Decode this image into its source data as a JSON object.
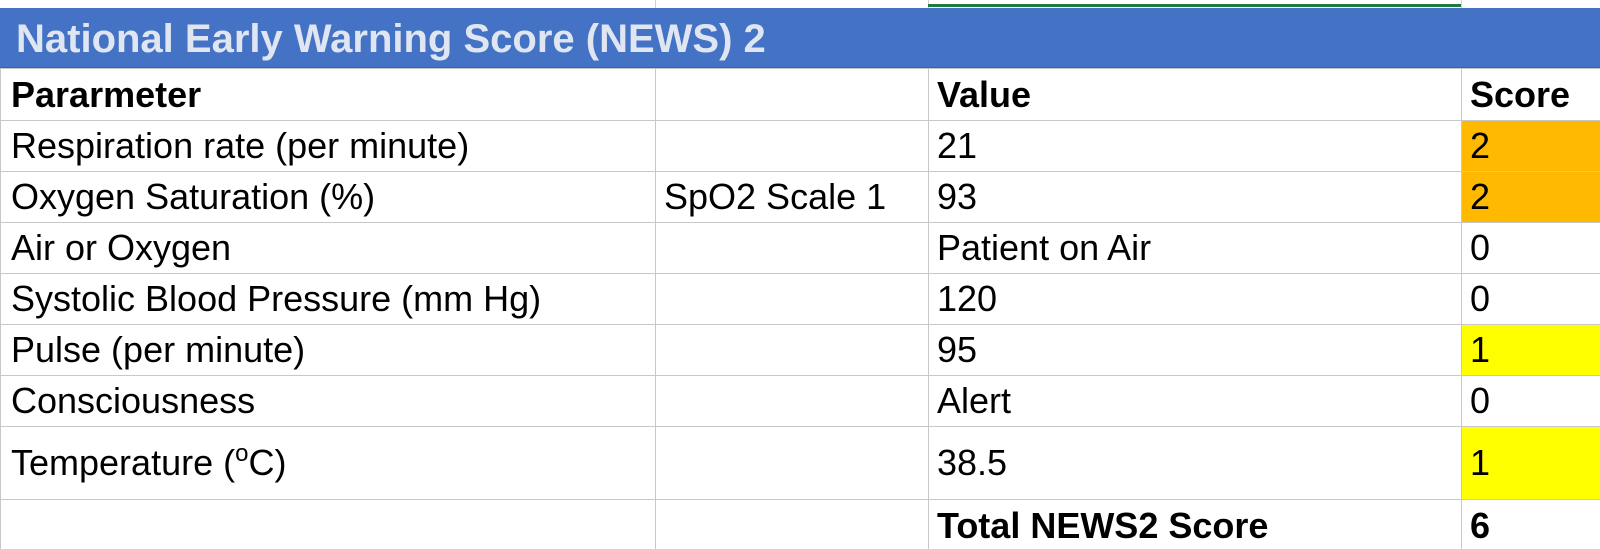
{
  "sheet": {
    "title": "National Early Warning Score (NEWS) 2"
  },
  "colors": {
    "title_band": "#4472c4",
    "title_text": "#dfe6f2",
    "score_orange": "#ffb900",
    "score_yellow": "#ffff00",
    "grid_line": "#c8c8c8",
    "selection_green": "#1e7b3c"
  },
  "headers": {
    "parameter": "Pararmeter",
    "extra": "",
    "value": "Value",
    "score": "Score"
  },
  "rows": [
    {
      "parameter": "Respiration rate (per minute)",
      "extra": "",
      "value": "21",
      "score": "2",
      "highlight": "orange"
    },
    {
      "parameter": "Oxygen Saturation (%)",
      "extra": "SpO2 Scale 1",
      "value": "93",
      "score": "2",
      "highlight": "orange"
    },
    {
      "parameter": "Air or Oxygen",
      "extra": "",
      "value": "Patient on Air",
      "score": "0",
      "highlight": "none"
    },
    {
      "parameter": "Systolic Blood Pressure (mm Hg)",
      "extra": "",
      "value": "120",
      "score": "0",
      "highlight": "none"
    },
    {
      "parameter": "Pulse (per minute)",
      "extra": "",
      "value": "95",
      "score": "1",
      "highlight": "yellow"
    },
    {
      "parameter": "Consciousness",
      "extra": "",
      "value": "Alert",
      "score": "0",
      "highlight": "none"
    },
    {
      "parameter_prefix": "Temperature (",
      "parameter_sup": "o",
      "parameter_suffix": "C)",
      "extra": "",
      "value": "38.5",
      "score": "1",
      "highlight": "yellow"
    }
  ],
  "total": {
    "label": "Total NEWS2 Score",
    "score": "6"
  }
}
